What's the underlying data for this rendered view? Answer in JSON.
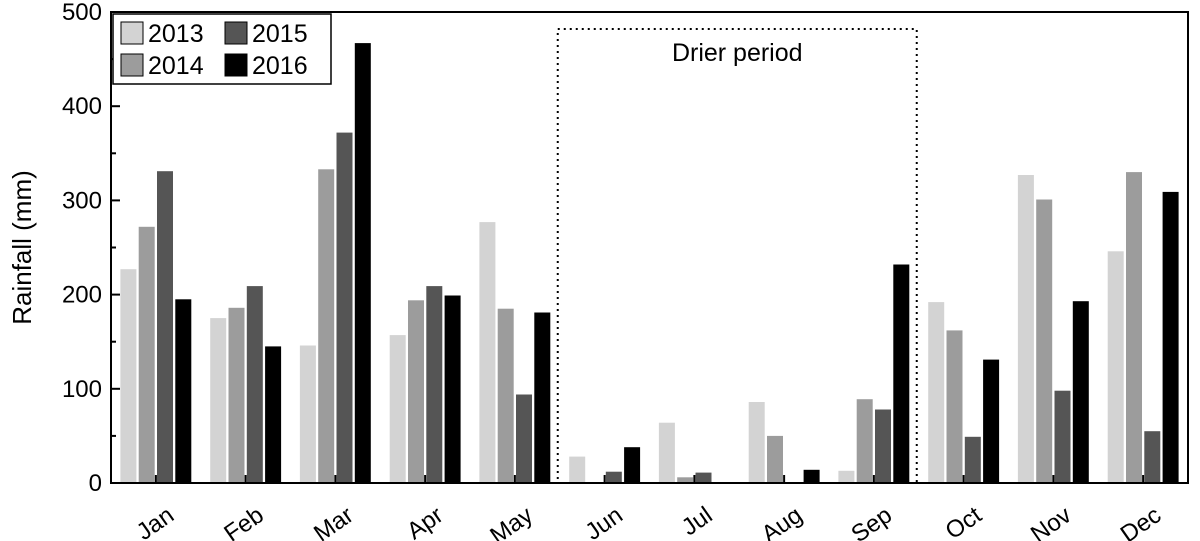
{
  "chart_data": {
    "type": "bar",
    "ylabel": "Rainfall (mm)",
    "xlabel": "",
    "ylim": [
      0,
      500
    ],
    "yticks": [
      0,
      100,
      200,
      300,
      400,
      500
    ],
    "categories": [
      "Jan",
      "Feb",
      "Mar",
      "Apr",
      "May",
      "Jun",
      "Jul",
      "Aug",
      "Sep",
      "Oct",
      "Nov",
      "Dec"
    ],
    "series": [
      {
        "name": "2013",
        "color": "#d3d3d3",
        "values": [
          227,
          175,
          146,
          157,
          277,
          28,
          64,
          86,
          13,
          192,
          327,
          246
        ]
      },
      {
        "name": "2014",
        "color": "#9c9c9c",
        "values": [
          272,
          186,
          333,
          194,
          185,
          0,
          6,
          50,
          89,
          162,
          301,
          330
        ]
      },
      {
        "name": "2015",
        "color": "#555555",
        "values": [
          331,
          209,
          372,
          209,
          94,
          12,
          11,
          0,
          78,
          49,
          98,
          55
        ]
      },
      {
        "name": "2016",
        "color": "#000000",
        "values": [
          195,
          145,
          467,
          199,
          181,
          38,
          0,
          14,
          232,
          131,
          193,
          309
        ]
      }
    ],
    "legend_position": "top-left",
    "grid": false,
    "annotations": [
      {
        "text": "Drier period",
        "type": "dotted-box",
        "from_category": "Jun",
        "to_category": "Sep"
      }
    ]
  }
}
